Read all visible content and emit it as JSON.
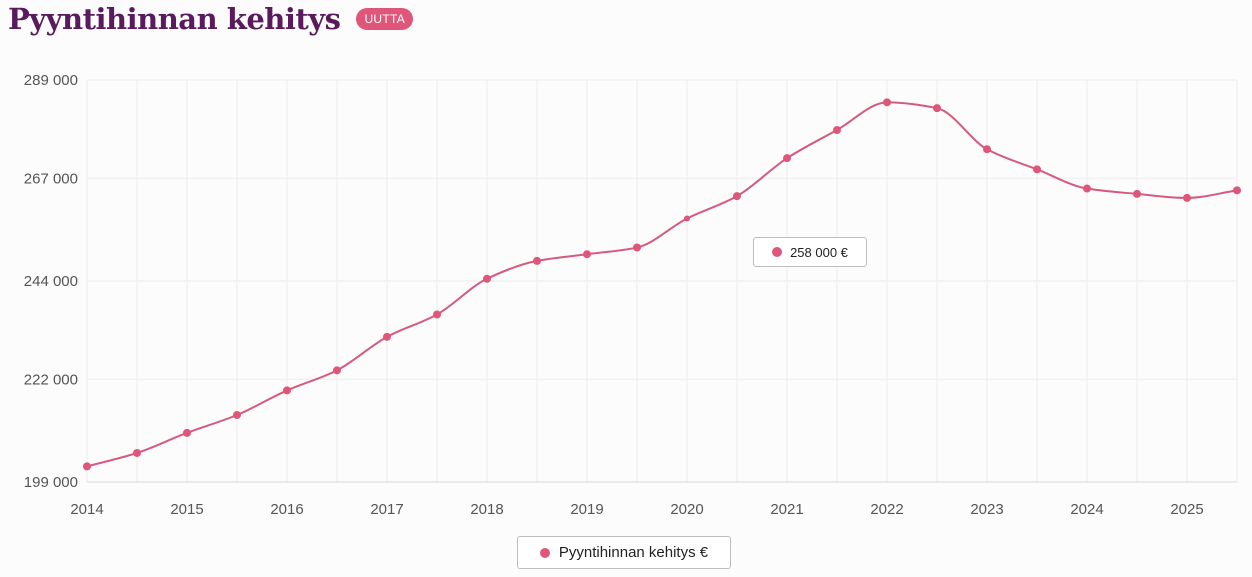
{
  "header": {
    "title": "Pyyntihinnan kehitys",
    "badge": "UUTTA"
  },
  "colors": {
    "series": "#e0567a",
    "line": "#d45a7e",
    "title": "#5a1a5e",
    "grid": "#ededed"
  },
  "tooltip": {
    "value": "258 000 €"
  },
  "chart_data": {
    "type": "line",
    "title": "",
    "xlabel": "",
    "ylabel": "",
    "xlim": [
      2014,
      2025.5
    ],
    "ylim": [
      199000,
      289000
    ],
    "y_ticks": [
      199000,
      222000,
      244000,
      267000,
      289000
    ],
    "y_tick_labels": [
      "199 000",
      "222 000",
      "244 000",
      "267 000",
      "289 000"
    ],
    "x_ticks": [
      2014,
      2015,
      2016,
      2017,
      2018,
      2019,
      2020,
      2021,
      2022,
      2023,
      2024,
      2025
    ],
    "x_tick_labels": [
      "2014",
      "2015",
      "2016",
      "2017",
      "2018",
      "2019",
      "2020",
      "2021",
      "2022",
      "2023",
      "2024",
      "2025"
    ],
    "grid": true,
    "legend": "bottom-center",
    "series": [
      {
        "name": "Pyyntihinnan kehitys €",
        "x": [
          2014,
          2014.5,
          2015,
          2015.5,
          2016,
          2016.5,
          2017,
          2017.5,
          2018,
          2018.5,
          2019,
          2019.5,
          2020,
          2020.5,
          2021,
          2021.5,
          2022,
          2022.5,
          2023,
          2023.5,
          2024,
          2024.5,
          2025,
          2025.5
        ],
        "y": [
          202500,
          205500,
          210000,
          214000,
          219500,
          224000,
          231500,
          236500,
          244500,
          248500,
          250000,
          251500,
          258000,
          263000,
          271500,
          277800,
          284000,
          282700,
          273500,
          269000,
          264700,
          263500,
          262600,
          264300
        ]
      }
    ],
    "highlighted_point_index": 12
  }
}
